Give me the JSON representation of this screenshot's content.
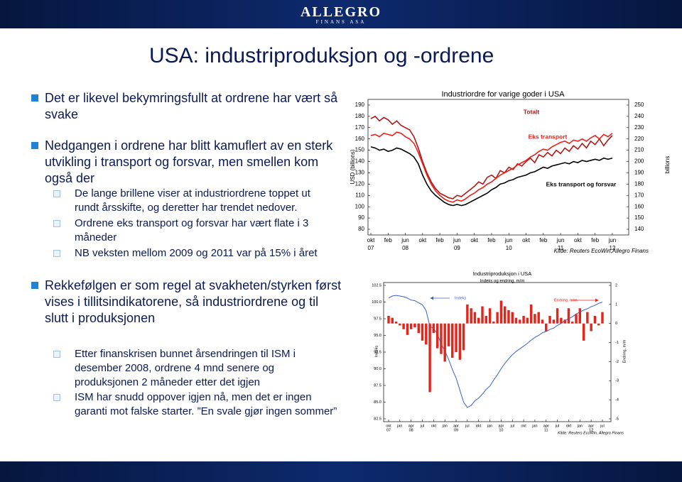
{
  "header": {
    "logo": "ALLEGRO",
    "logo_sub": "FINANS ASA",
    "title": "USA: industriproduksjon og -ordrene"
  },
  "bullets": [
    {
      "text": "Det er likevel bekymringsfullt at ordrene har vært så svake",
      "sub": []
    },
    {
      "text": "Nedgangen i ordrene har blitt kamuflert av en sterk utvikling i transport og forsvar, men smellen kom også der",
      "sub": [
        "De lange brillene viser at industriordrene toppet ut rundt årsskifte, og deretter har trendet nedover.",
        "Ordrene eks transport og forsvar har vært flate i 3 måneder",
        "NB veksten mellom 2009 og 2011 var på 15% i året"
      ]
    },
    {
      "text": "Rekkefølgen er som regel at svakheten/styrken først vises i tillitsindikatorene, så industriordrene og til slutt i produksjonen",
      "sub": [
        "Etter finanskrisen bunnet årsendringen til ISM i desember 2008, ordrene 4 mnd senere og produksjonen 2 måneder etter det igjen",
        "ISM har snudd oppover igjen nå, men det er ingen garanti mot falske starter. ”En svale gjør ingen sommer”"
      ]
    }
  ],
  "chart_data": [
    {
      "type": "line",
      "title": "Industriordre for varige goder i USA",
      "y_label": "USD (billions)",
      "y2_label": "billions",
      "source": "Kilde: Reuters EcoWin,Allegro Finans",
      "categories": [
        "okt",
        null,
        null,
        null,
        "feb",
        null,
        null,
        null,
        "jun",
        null,
        null,
        null,
        "okt",
        null,
        null,
        null,
        "feb",
        null,
        null,
        null,
        "jun",
        null,
        null,
        null,
        "okt",
        null,
        null,
        null,
        "feb",
        null,
        null,
        null,
        "jun",
        null,
        null,
        null,
        "okt",
        null,
        null,
        null,
        "feb",
        null,
        null,
        null,
        "jun",
        null,
        null,
        null,
        "okt",
        null,
        null,
        null,
        "feb",
        null,
        null,
        null,
        "jun"
      ],
      "x_years": [
        "07",
        null,
        null,
        null,
        null,
        null,
        null,
        null,
        "08",
        null,
        null,
        null,
        null,
        null,
        null,
        null,
        null,
        null,
        null,
        null,
        "09",
        null,
        null,
        null,
        null,
        null,
        null,
        null,
        null,
        null,
        null,
        null,
        "10",
        null,
        null,
        null,
        null,
        null,
        null,
        null,
        null,
        null,
        null,
        null,
        "11",
        null,
        null,
        null,
        null,
        null,
        null,
        null,
        null,
        null,
        null,
        null,
        "12"
      ],
      "ylim": [
        80,
        190
      ],
      "yticks": [
        80,
        90,
        100,
        110,
        120,
        130,
        140,
        150,
        160,
        170,
        180,
        190
      ],
      "y2lim": [
        140,
        250
      ],
      "y2ticks": [
        140,
        150,
        160,
        170,
        180,
        190,
        200,
        210,
        220,
        230,
        240,
        250
      ],
      "series": [
        {
          "name": "Totalt",
          "color": "#b01818",
          "axis": "y2",
          "values": [
            238,
            240,
            236,
            239,
            237,
            233,
            236,
            232,
            230,
            228,
            222,
            212,
            200,
            190,
            182,
            176,
            172,
            170,
            168,
            167,
            170,
            169,
            172,
            175,
            178,
            182,
            180,
            186,
            188,
            185,
            192,
            190,
            195,
            193,
            198,
            196,
            200,
            203,
            199,
            206,
            204,
            208,
            205,
            210,
            207,
            212,
            209,
            214,
            211,
            216,
            212,
            218,
            215,
            220,
            214,
            219,
            223
          ]
        },
        {
          "name": "Eks transport",
          "color": "#e8231b",
          "values": [
            163,
            164,
            162,
            165,
            164,
            163,
            166,
            165,
            162,
            160,
            156,
            148,
            138,
            128,
            120,
            114,
            110,
            107,
            105,
            104,
            106,
            105,
            107,
            110,
            112,
            115,
            117,
            120,
            122,
            125,
            128,
            130,
            132,
            134,
            137,
            139,
            141,
            144,
            146,
            149,
            151,
            150,
            153,
            155,
            157,
            158,
            156,
            159,
            158,
            160,
            158,
            161,
            163,
            160,
            164,
            162,
            165
          ]
        },
        {
          "name": "Eks transport og forsvar",
          "color": "#000000",
          "values": [
            153,
            152,
            150,
            151,
            149,
            150,
            152,
            151,
            149,
            147,
            144,
            138,
            128,
            120,
            114,
            110,
            107,
            104,
            102,
            101,
            102,
            101,
            102,
            104,
            106,
            108,
            110,
            112,
            115,
            117,
            120,
            121,
            123,
            124,
            126,
            127,
            128,
            130,
            131,
            133,
            135,
            134,
            136,
            137,
            138,
            139,
            138,
            140,
            139,
            141,
            140,
            141,
            142,
            141,
            143,
            142,
            143
          ]
        }
      ]
    },
    {
      "type": "combo",
      "title": "Industriproduksjon i USA",
      "subtitle": "Indeks og endring, m/m",
      "y_label": "Indeks",
      "y2_label": "Endring, m/m",
      "source": "Kilde: Reuters EcoWin, Allegro Finans",
      "categories": [
        "okt",
        null,
        null,
        "jan",
        null,
        null,
        "apr",
        null,
        null,
        "jul",
        null,
        null,
        "okt",
        null,
        null,
        "jan",
        null,
        null,
        "apr",
        null,
        null,
        "jul",
        null,
        null,
        "okt",
        null,
        null,
        "jan",
        null,
        null,
        "apr",
        null,
        null,
        "jul",
        null,
        null,
        "okt",
        null,
        null,
        "jan",
        null,
        null,
        "apr",
        null,
        null,
        "jul",
        null,
        null,
        "okt",
        null,
        null,
        "jan",
        null,
        null,
        "apr",
        null,
        null,
        "jul"
      ],
      "x_years": [
        "07",
        null,
        null,
        null,
        null,
        null,
        "08",
        null,
        null,
        null,
        null,
        null,
        null,
        null,
        null,
        null,
        null,
        null,
        "09",
        null,
        null,
        null,
        null,
        null,
        null,
        null,
        null,
        null,
        null,
        null,
        "10",
        null,
        null,
        null,
        null,
        null,
        null,
        null,
        null,
        null,
        null,
        null,
        "11",
        null,
        null,
        null,
        null,
        null,
        null,
        null,
        null,
        null,
        null,
        null,
        "12",
        null,
        null,
        null
      ],
      "ylim": [
        82.5,
        102.5
      ],
      "yticks": [
        82.5,
        {
          "value": 85,
          "label": "85.0"
        },
        87.5,
        {
          "value": 90,
          "label": "90.0"
        },
        92.5,
        {
          "value": 95,
          "label": "95.0"
        },
        97.5,
        {
          "value": 100,
          "label": "100.0"
        },
        102.5
      ],
      "y2lim": [
        -5,
        2
      ],
      "y2ticks": [
        -5,
        -4,
        -3,
        -2,
        -1,
        0,
        1,
        2
      ],
      "series": [
        {
          "name": "Indeks",
          "type": "line",
          "color": "#3b5fcf",
          "values": [
            100.6,
            100.9,
            101.0,
            100.9,
            100.8,
            100.6,
            100.3,
            100.2,
            99.9,
            99.6,
            98.7,
            96.4,
            96.0,
            95.2,
            93.7,
            92.7,
            91.4,
            89.9,
            88.6,
            86.8,
            85.0,
            84.2,
            84.5,
            85.2,
            85.6,
            86.2,
            86.9,
            87.4,
            88.3,
            89.1,
            90.0,
            90.8,
            91.5,
            92.1,
            92.6,
            93.0,
            93.4,
            93.8,
            94.3,
            94.7,
            95.0,
            95.4,
            95.6,
            95.9,
            96.1,
            96.5,
            96.8,
            97.2,
            97.5,
            97.8,
            98.2,
            98.5,
            98.8,
            99.0,
            99.3,
            99.5,
            99.8,
            100.0
          ]
        },
        {
          "name": "Endring, m/m",
          "type": "bar",
          "color": "#e0261d",
          "axis": "y2",
          "values": [
            0.4,
            0.3,
            0.1,
            -0.1,
            -0.3,
            -0.6,
            -0.3,
            -0.2,
            -0.5,
            -0.9,
            -1.1,
            -3.6,
            -0.5,
            -1.3,
            -1.6,
            -2.0,
            -1.2,
            -1.8,
            -1.5,
            -1.9,
            -1.4,
            1.0,
            0.8,
            0.6,
            0.3,
            0.9,
            0.4,
            0.8,
            0.1,
            0.6,
            1.2,
            0.9,
            0.7,
            0.6,
            0.3,
            0.2,
            0.4,
            0.3,
            1.0,
            0.5,
            0.6,
            0.2,
            -0.4,
            0.4,
            0.2,
            0.8,
            0.3,
            0.2,
            0.8,
            0.1,
            0.5,
            0.8,
            -0.9,
            0.6,
            -0.4,
            0.4,
            -0.1,
            0.6
          ]
        }
      ]
    }
  ]
}
